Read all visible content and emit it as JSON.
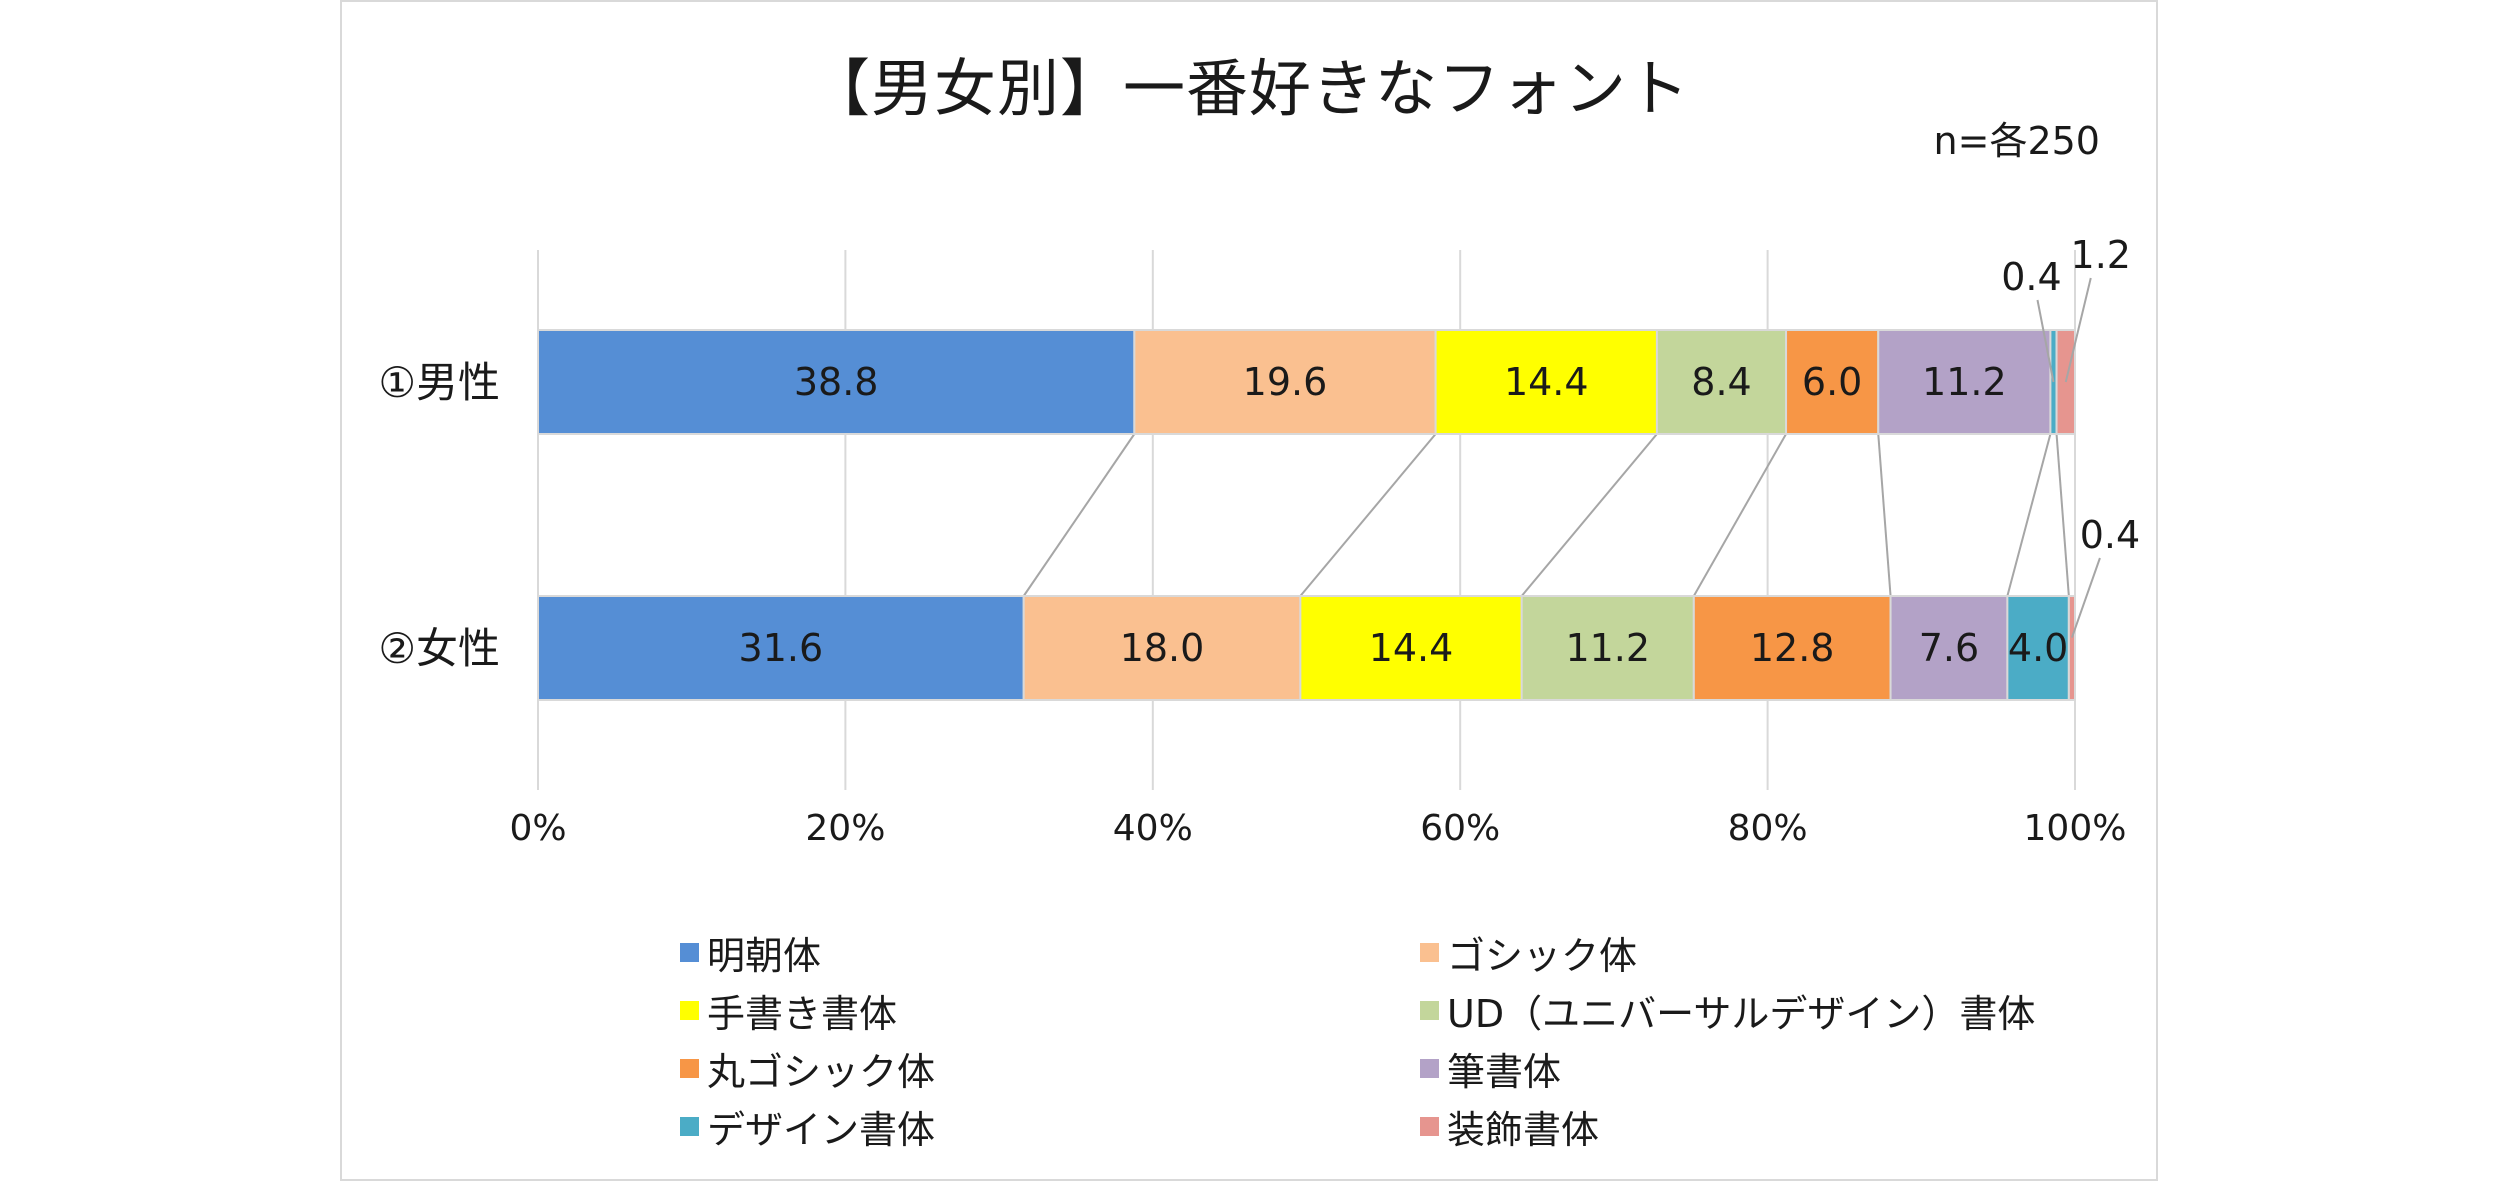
{
  "chart_data": {
    "type": "bar",
    "orientation": "horizontal",
    "stacking": "percent",
    "title": "【男女別】一番好きなフォント",
    "note": "n=各250",
    "categories": [
      "①男性",
      "②女性"
    ],
    "xlim": [
      0,
      100
    ],
    "x_ticks": [
      "0%",
      "20%",
      "40%",
      "60%",
      "80%",
      "100%"
    ],
    "grid": "vertical",
    "connector_lines": true,
    "legend_position": "bottom",
    "series": [
      {
        "name": "明朝体",
        "color": "#558ed5",
        "values": [
          38.8,
          31.6
        ]
      },
      {
        "name": "ゴシック体",
        "color": "#fac090",
        "values": [
          19.6,
          18.0
        ]
      },
      {
        "name": "手書き書体",
        "color": "#ffff00",
        "values": [
          14.4,
          14.4
        ]
      },
      {
        "name": "UD（ユニバーサルデザイン）書体",
        "color": "#c3d69b",
        "values": [
          8.4,
          11.2
        ]
      },
      {
        "name": "丸ゴシック体",
        "color": "#f79646",
        "values": [
          6.0,
          12.8
        ]
      },
      {
        "name": "筆書体",
        "color": "#b3a2c7",
        "values": [
          11.2,
          7.6
        ]
      },
      {
        "name": "デザイン書体",
        "color": "#4bacc6",
        "values": [
          0.4,
          4.0
        ]
      },
      {
        "name": "装飾書体",
        "color": "#e6958f",
        "values": [
          1.2,
          0.4
        ]
      }
    ]
  }
}
